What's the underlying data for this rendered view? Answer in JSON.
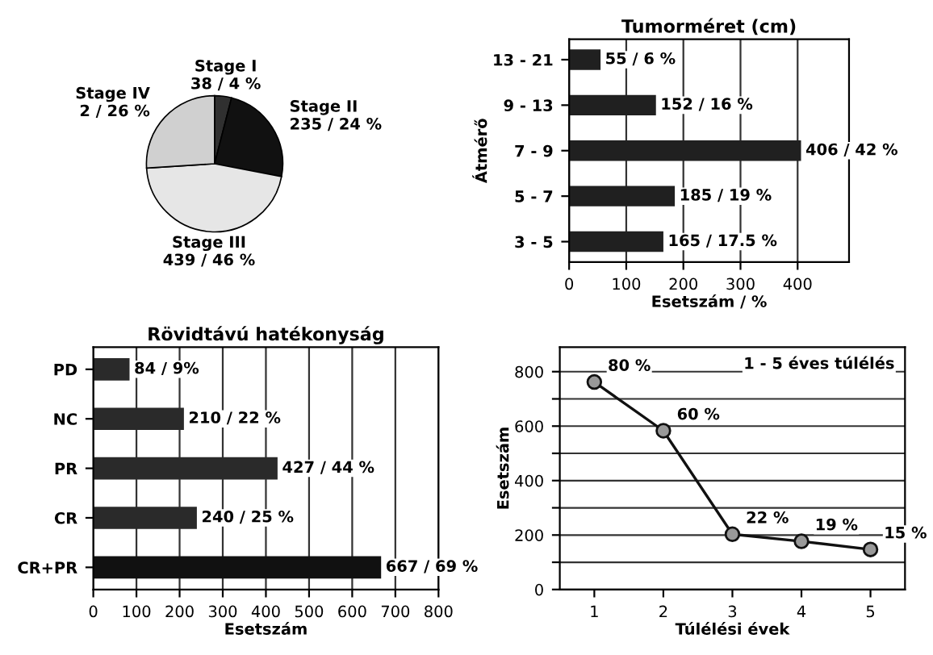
{
  "chart_data": [
    {
      "type": "pie",
      "categories": [
        "Stage I",
        "Stage II",
        "Stage III",
        "Stage IV"
      ],
      "values": [
        4,
        24,
        46,
        26
      ],
      "colors": [
        "#303030",
        "#111111",
        "#e6e6e6",
        "#d0d0d0"
      ],
      "value_labels": [
        "38 / 4 %",
        "235 / 24 %",
        "439 / 46 %",
        "2 / 26 %"
      ]
    },
    {
      "type": "bar",
      "orientation": "horizontal",
      "title": "Tumorméret (cm)",
      "xlabel": "Esetszám / %",
      "ylabel": "Átmérő",
      "categories": [
        "13 - 21",
        "9 - 13",
        "7 - 9",
        "5 - 7",
        "3 - 5"
      ],
      "values": [
        55,
        152,
        406,
        185,
        165
      ],
      "color": "#202020",
      "value_labels": [
        "55 / 6 %",
        "152 / 16 %",
        "406 / 42 %",
        "185 / 19 %",
        "165 / 17.5 %"
      ],
      "xlim": [
        0,
        490
      ],
      "xticks": [
        0,
        100,
        200,
        300,
        400
      ],
      "grid": "x"
    },
    {
      "type": "bar",
      "orientation": "horizontal",
      "title": "Rövidtávú hatékonyság",
      "xlabel": "Esetszám",
      "categories": [
        "PD",
        "NC",
        "PR",
        "CR",
        "CR+PR"
      ],
      "values": [
        84,
        210,
        427,
        240,
        667
      ],
      "colors": [
        "#2a2a2a",
        "#2a2a2a",
        "#2a2a2a",
        "#2a2a2a",
        "#111111"
      ],
      "value_labels": [
        "84 / 9%",
        "210 / 22 %",
        "427 / 44 %",
        "240 / 25 %",
        "667 / 69 %"
      ],
      "xlim": [
        0,
        800
      ],
      "xticks": [
        0,
        100,
        200,
        300,
        400,
        500,
        600,
        700,
        800
      ],
      "grid": "x"
    },
    {
      "type": "line",
      "xlabel": "Túlélési évek",
      "ylabel": "Esetszám",
      "x": [
        1,
        2,
        3,
        4,
        5
      ],
      "values": [
        762,
        583,
        203,
        177,
        147
      ],
      "color": "#111111",
      "marker": "circle",
      "annotations": [
        {
          "text": "80 %",
          "x": 1,
          "y": 762
        },
        {
          "text": "60 %",
          "x": 2,
          "y": 583
        },
        {
          "text": "22 %",
          "x": 3,
          "y": 203
        },
        {
          "text": "19 %",
          "x": 4,
          "y": 177
        },
        {
          "text": "15 %",
          "x": 5,
          "y": 147
        },
        "1 - 5 éves túlélés"
      ],
      "xlim": [
        0.5,
        5.5
      ],
      "xticks": [
        1,
        2,
        3,
        4,
        5
      ],
      "ylim": [
        0,
        890
      ],
      "yticks": [
        0,
        {
          "value": 100,
          "label": null
        },
        200,
        {
          "value": 300,
          "label": null
        },
        400,
        {
          "value": 500,
          "label": null
        },
        600,
        {
          "value": 700,
          "label": null
        },
        800
      ],
      "grid": "y"
    }
  ]
}
